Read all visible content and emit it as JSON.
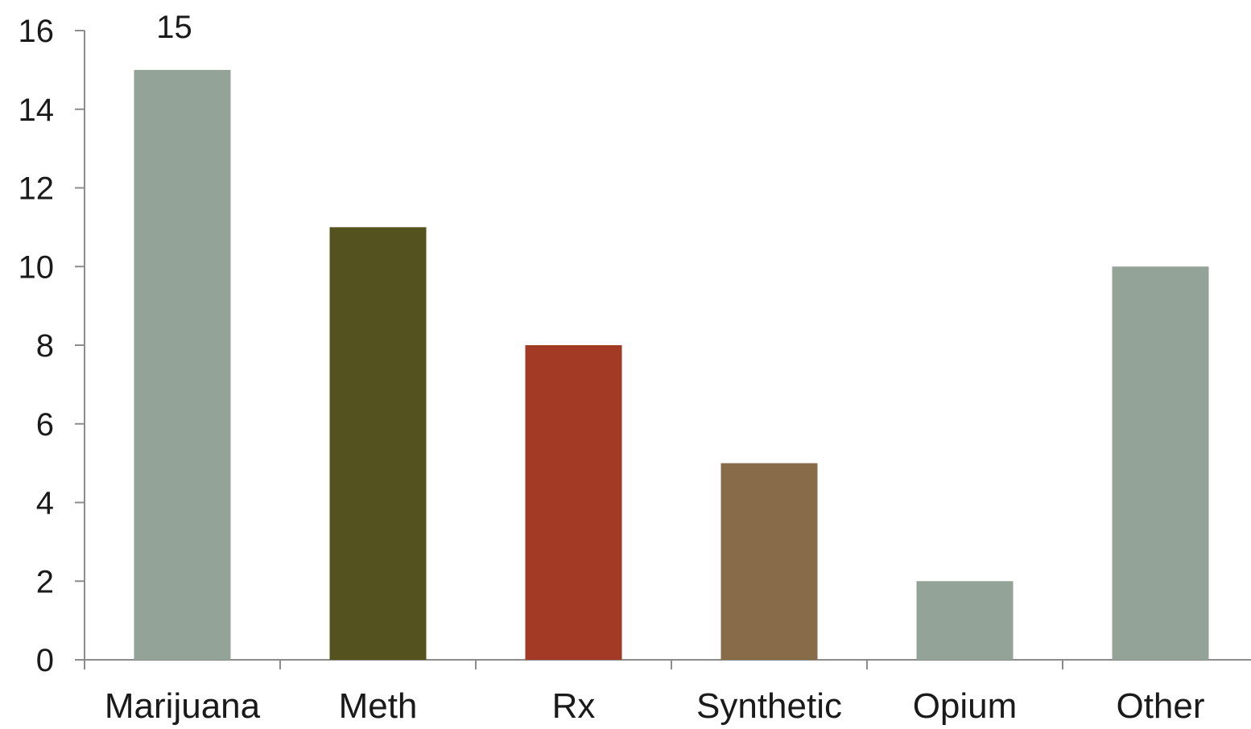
{
  "chart_data": {
    "type": "bar",
    "categories": [
      "Marijuana",
      "Meth",
      "Rx",
      "Synthetic",
      "Opium",
      "Other"
    ],
    "values": [
      15,
      11,
      8,
      5,
      2,
      10
    ],
    "bar_colors": [
      "#93a398",
      "#54521f",
      "#a33a26",
      "#886c4a",
      "#93a398",
      "#93a398"
    ],
    "data_labels": [
      {
        "category": "Marijuana",
        "text": "15"
      }
    ],
    "ylim": [
      0,
      16
    ],
    "yticks": [
      0,
      2,
      4,
      6,
      8,
      10,
      12,
      14,
      16
    ],
    "title": "",
    "xlabel": "",
    "ylabel": "",
    "grid": false,
    "legend": "none",
    "axis_color": "#8c8c8c"
  }
}
